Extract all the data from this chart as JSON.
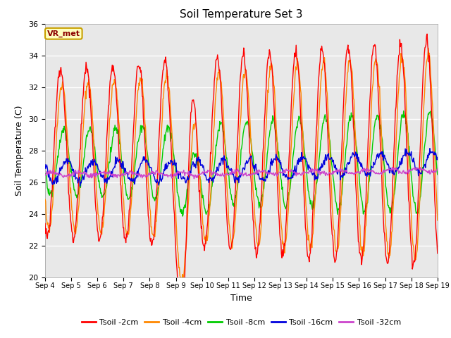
{
  "title": "Soil Temperature Set 3",
  "xlabel": "Time",
  "ylabel": "Soil Temperature (C)",
  "ylim": [
    20,
    36
  ],
  "yticks": [
    20,
    22,
    24,
    26,
    28,
    30,
    32,
    34,
    36
  ],
  "annotation_text": "VR_met",
  "annotation_bg": "#ffffc0",
  "annotation_border": "#c8a000",
  "annotation_text_color": "#8b0000",
  "series_colors": {
    "Tsoil -2cm": "#ff0000",
    "Tsoil -4cm": "#ff8800",
    "Tsoil -8cm": "#00cc00",
    "Tsoil -16cm": "#0000dd",
    "Tsoil -32cm": "#cc44cc"
  },
  "bg_color": "#e8e8e8",
  "fig_bg": "#ffffff",
  "line_width": 1.0,
  "xtick_labels": [
    "Sep 4",
    "Sep 5",
    "Sep 6",
    "Sep 7",
    "Sep 8",
    "Sep 9",
    "Sep 10",
    "Sep 11",
    "Sep 12",
    "Sep 13",
    "Sep 14",
    "Sep 15",
    "Sep 16",
    "Sep 17",
    "Sep 18",
    "Sep 19"
  ]
}
